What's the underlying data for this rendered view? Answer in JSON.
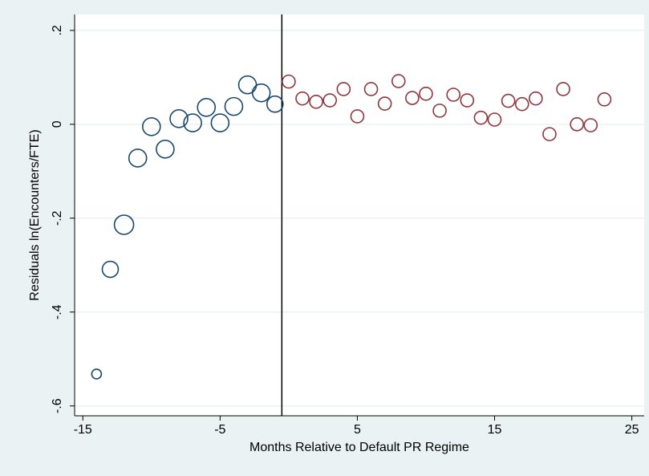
{
  "chart_data": {
    "type": "scatter",
    "x_label": "Months Relative to Default PR Regime",
    "y_label": "Residuals ln(Encounters/FTE)",
    "xlim": [
      -15.6,
      25.9
    ],
    "xticks": [
      -15,
      -5,
      5,
      15,
      25
    ],
    "ylim": [
      -0.621,
      0.234
    ],
    "yticks": [
      {
        "value": -0.6,
        "label": "-.6"
      },
      {
        "value": -0.4,
        "label": "-.4"
      },
      {
        "value": -0.2,
        "label": "-.2"
      },
      0,
      {
        "value": 0.2,
        "label": ".2"
      }
    ],
    "grid": true,
    "vline": -0.5,
    "series": [
      {
        "color": "#1a476f",
        "x": [
          -14,
          -13,
          -12,
          -11,
          -10,
          -9,
          -8,
          -7,
          -6,
          -5,
          -4,
          -3,
          -2,
          -1
        ],
        "values": [
          -0.532,
          -0.309,
          -0.214,
          -0.072,
          -0.005,
          -0.053,
          0.012,
          0.003,
          0.036,
          0.003,
          0.038,
          0.084,
          0.067,
          0.043
        ],
        "sizes": [
          36,
          100,
          144,
          121,
          121,
          121,
          121,
          121,
          121,
          121,
          121,
          121,
          121,
          100
        ]
      },
      {
        "color": "#90353b",
        "x": [
          0,
          1,
          2,
          3,
          4,
          5,
          6,
          7,
          8,
          9,
          10,
          11,
          12,
          13,
          14,
          15,
          16,
          17,
          18,
          19,
          20,
          21,
          22,
          23
        ],
        "values": [
          0.091,
          0.055,
          0.048,
          0.051,
          0.075,
          0.017,
          0.075,
          0.044,
          0.092,
          0.056,
          0.065,
          0.029,
          0.063,
          0.051,
          0.014,
          0.01,
          0.05,
          0.043,
          0.055,
          -0.021,
          0.075,
          0.0,
          -0.002,
          0.053
        ]
      }
    ]
  }
}
